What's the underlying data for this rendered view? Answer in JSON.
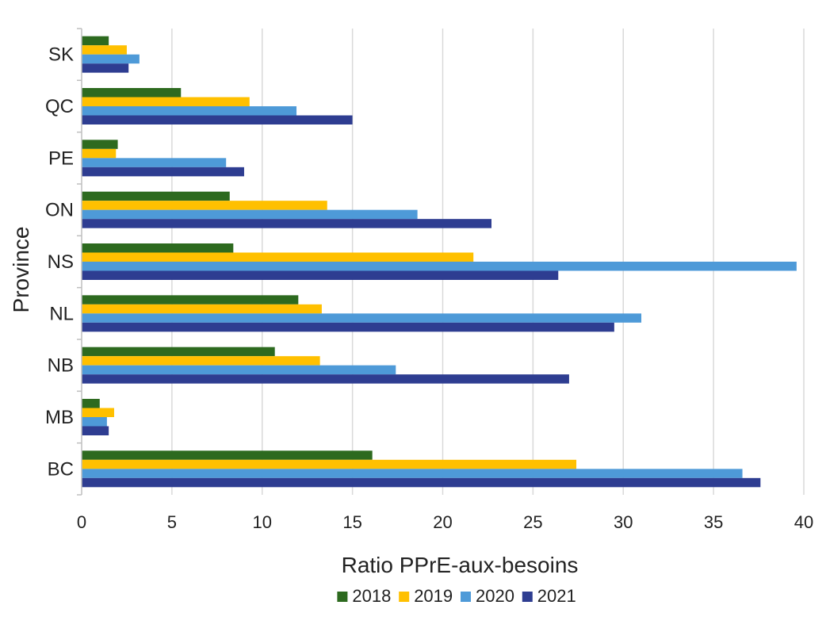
{
  "chart_data": {
    "type": "bar",
    "orientation": "horizontal",
    "categories": [
      "SK",
      "QC",
      "PE",
      "ON",
      "NS",
      "NL",
      "NB",
      "MB",
      "BC"
    ],
    "series": [
      {
        "name": "2018",
        "color": "#2d6a1f",
        "values": [
          1.5,
          5.5,
          2.0,
          8.2,
          8.4,
          12.0,
          10.7,
          1.0,
          16.1
        ]
      },
      {
        "name": "2019",
        "color": "#ffc000",
        "values": [
          2.5,
          9.3,
          1.9,
          13.6,
          21.7,
          13.3,
          13.2,
          1.8,
          27.4
        ]
      },
      {
        "name": "2020",
        "color": "#4e9ad8",
        "values": [
          3.2,
          11.9,
          8.0,
          18.6,
          39.6,
          31.0,
          17.4,
          1.4,
          36.6
        ]
      },
      {
        "name": "2021",
        "color": "#2e3d91",
        "values": [
          2.6,
          15.0,
          9.0,
          22.7,
          26.4,
          29.5,
          27.0,
          1.5,
          37.6
        ]
      }
    ],
    "title": "",
    "xlabel": "Ratio PPrE-aux-besoins",
    "ylabel": "Province",
    "xlim": [
      0,
      40
    ],
    "xticks": [
      0,
      5,
      10,
      15,
      20,
      25,
      30,
      35,
      40
    ],
    "grid": "vertical",
    "legend_position": "bottom"
  }
}
